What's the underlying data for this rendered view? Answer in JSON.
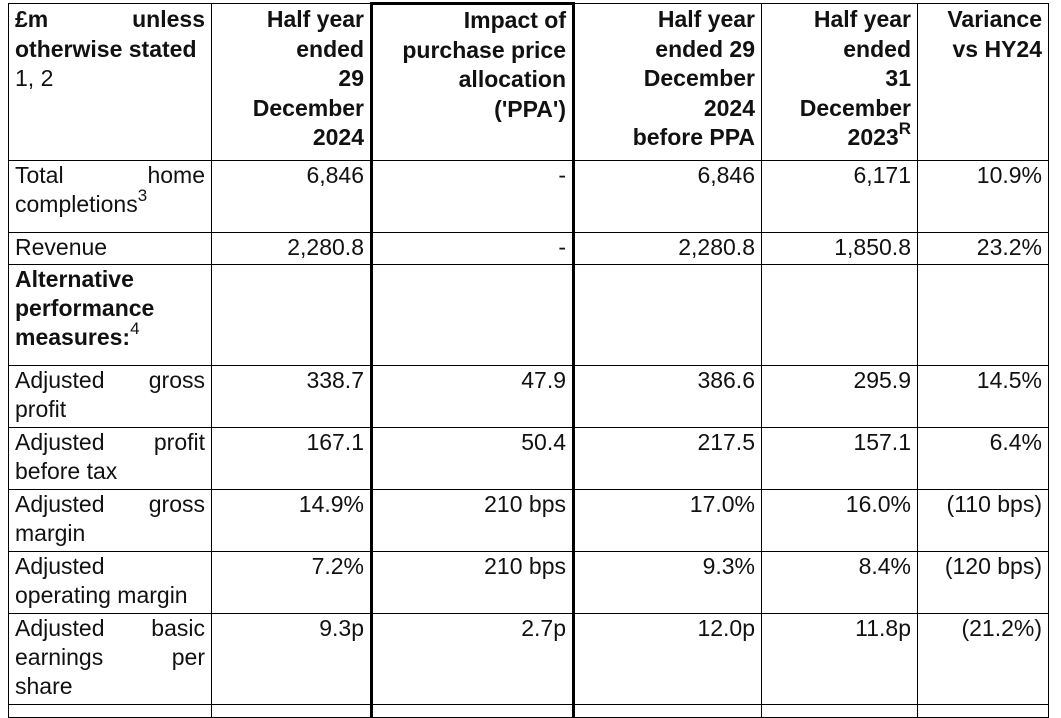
{
  "header": {
    "col0_line1": "£m",
    "col0_line1b": "unless",
    "col0_line2": "otherwise stated",
    "col0_line3": "1, 2",
    "col1": [
      "Half year",
      "ended",
      "29",
      "December",
      "2024"
    ],
    "col2": [
      "Impact of",
      "purchase price",
      "allocation",
      "('PPA')"
    ],
    "col3": [
      "Half year",
      "ended 29",
      "December",
      "2024",
      "before PPA"
    ],
    "col4": [
      "Half year",
      "ended",
      "31",
      "December",
      "2023"
    ],
    "col4_sup": "R",
    "col5": [
      "Variance",
      "vs HY24"
    ]
  },
  "rows": [
    {
      "label": "Total home completions",
      "sup": "3",
      "cells": [
        "6,846",
        "-",
        "6,846",
        "6,171",
        "10.9%"
      ]
    },
    {
      "label": "Revenue",
      "sup": "",
      "cells": [
        "2,280.8",
        "-",
        "2,280.8",
        "1,850.8",
        "23.2%"
      ]
    },
    {
      "label": "Alternative performance measures:",
      "sup": "4",
      "bold": true,
      "cells": [
        "",
        "",
        "",
        "",
        ""
      ]
    },
    {
      "label": "Adjusted gross profit",
      "sup": "",
      "cells": [
        "338.7",
        "47.9",
        "386.6",
        "295.9",
        "14.5%"
      ]
    },
    {
      "label": "Adjusted profit before tax",
      "sup": "",
      "cells": [
        "167.1",
        "50.4",
        "217.5",
        "157.1",
        "6.4%"
      ]
    },
    {
      "label": "Adjusted gross margin",
      "sup": "",
      "cells": [
        "14.9%",
        "210 bps",
        "17.0%",
        "16.0%",
        "(110 bps)"
      ]
    },
    {
      "label": "Adjusted operating margin",
      "sup": "",
      "cells": [
        "7.2%",
        "210 bps",
        "9.3%",
        "8.4%",
        "(120 bps)"
      ]
    },
    {
      "label": "Adjusted basic earnings per share",
      "sup": "",
      "cells": [
        "9.3p",
        "2.7p",
        "12.0p",
        "11.8p",
        "(21.2%)"
      ]
    }
  ]
}
